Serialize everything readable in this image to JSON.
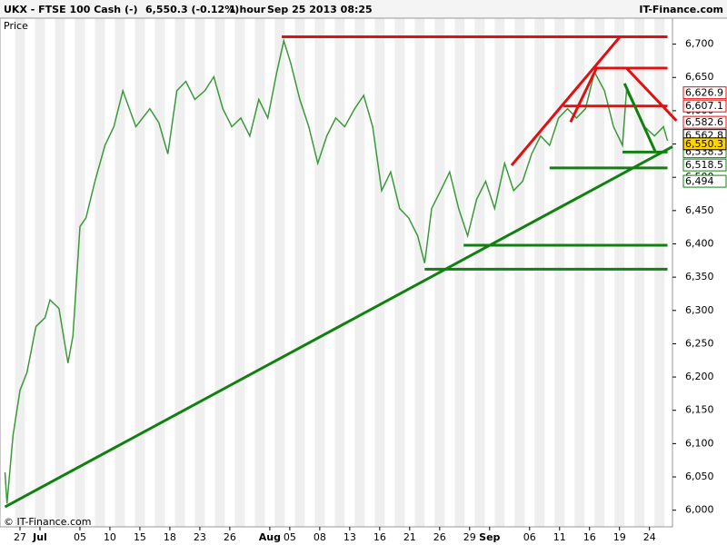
{
  "header": {
    "instrument": "UKX - FTSE 100 Cash (-)",
    "quote": "6,550.3 (-0.12%)",
    "interval": "1 hour",
    "timestamp": "Sep 25 2013 08:25",
    "brand": "IT-Finance.com"
  },
  "footer": {
    "copyright": "© IT-Finance.com"
  },
  "chart_data": {
    "type": "line",
    "y_label": "Price",
    "x": [
      -1.5,
      -1.3,
      -0.7,
      0,
      0.7,
      1.6,
      2.5,
      3,
      3.9,
      4.8,
      5.3,
      6,
      6.6,
      7.5,
      8.5,
      9.4,
      10.3,
      11.6,
      13,
      13.9,
      14.8,
      15.7,
      16.6,
      17.5,
      18.5,
      19.4,
      20.3,
      21.2,
      22.1,
      23,
      23.9,
      24.8,
      25.7,
      26.4,
      27.1,
      28,
      28.9,
      29.8,
      30.7,
      31.6,
      32.5,
      33.5,
      34.4,
      35.3,
      36.2,
      37.1,
      38,
      38.9,
      39.8,
      40.5,
      41.2,
      42.1,
      43,
      43.9,
      44.8,
      45.7,
      46.6,
      47.5,
      48.5,
      49.4,
      50.3,
      51.2,
      52.1,
      53,
      53.9,
      54.8,
      55.7,
      56.6,
      57.5,
      58.5,
      59.4,
      60.3,
      60.7,
      61.6,
      62.5,
      63.5,
      64.4,
      64.8
    ],
    "series": [
      {
        "name": "Price",
        "color": "#3a9a3a",
        "values": [
          6057,
          6010,
          6112,
          6180,
          6207,
          6276,
          6289,
          6316,
          6303,
          6221,
          6262,
          6426,
          6439,
          6494,
          6548,
          6576,
          6630,
          6576,
          6603,
          6582,
          6535,
          6630,
          6644,
          6617,
          6630,
          6651,
          6603,
          6576,
          6589,
          6562,
          6617,
          6589,
          6658,
          6705,
          6671,
          6617,
          6576,
          6521,
          6562,
          6589,
          6576,
          6603,
          6623,
          6576,
          6480,
          6508,
          6453,
          6439,
          6412,
          6371,
          6453,
          6480,
          6508,
          6453,
          6412,
          6467,
          6494,
          6453,
          6521,
          6480,
          6494,
          6535,
          6562,
          6548,
          6589,
          6603,
          6589,
          6603,
          6658,
          6630,
          6576,
          6548,
          6630,
          6603,
          6576,
          6562,
          6576,
          6555
        ]
      }
    ],
    "xlim": [
      -2,
      65.3
    ],
    "ylim": [
      5975,
      6739
    ],
    "xticks": [
      {
        "value": 0,
        "label": "27"
      },
      {
        "value": 2,
        "label": "Jul"
      },
      {
        "value": 6,
        "label": "05"
      },
      {
        "value": 9,
        "label": "10"
      },
      {
        "value": 12,
        "label": "15"
      },
      {
        "value": 15,
        "label": "18"
      },
      {
        "value": 18,
        "label": "23"
      },
      {
        "value": 21,
        "label": "26"
      },
      {
        "value": 25,
        "label": "Aug"
      },
      {
        "value": 27,
        "label": "05"
      },
      {
        "value": 30,
        "label": "08"
      },
      {
        "value": 33,
        "label": "13"
      },
      {
        "value": 36,
        "label": "16"
      },
      {
        "value": 39,
        "label": "21"
      },
      {
        "value": 42,
        "label": "26"
      },
      {
        "value": 45,
        "label": "29"
      },
      {
        "value": 47,
        "label": "Sep"
      },
      {
        "value": 51,
        "label": "06"
      },
      {
        "value": 54,
        "label": "11"
      },
      {
        "value": 57,
        "label": "16"
      },
      {
        "value": 60,
        "label": "19"
      },
      {
        "value": 63,
        "label": "24"
      }
    ],
    "yticks": [
      {
        "value": 6000,
        "label": "6,000"
      },
      {
        "value": 6050,
        "label": "6,050"
      },
      {
        "value": 6100,
        "label": "6,100"
      },
      {
        "value": 6150,
        "label": "6,150"
      },
      {
        "value": 6200,
        "label": "6,200"
      },
      {
        "value": 6250,
        "label": "6,250"
      },
      {
        "value": 6300,
        "label": "6,300"
      },
      {
        "value": 6350,
        "label": "6,350"
      },
      {
        "value": 6400,
        "label": "6,400"
      },
      {
        "value": 6450,
        "label": "6,450"
      },
      {
        "value": 6500,
        "label": "6,500"
      },
      {
        "value": 6550,
        "label": "6,550"
      },
      {
        "value": 6600,
        "label": "6,600"
      },
      {
        "value": 6650,
        "label": "6,650"
      },
      {
        "value": 6700,
        "label": "6,700"
      }
    ],
    "trend_lines": [
      {
        "color": "#e01010",
        "x": [
          26.2,
          64.8
        ],
        "y": [
          6711,
          6711
        ]
      },
      {
        "color": "#e01010",
        "x": [
          49.2,
          60.1
        ],
        "y": [
          6518,
          6712
        ]
      },
      {
        "color": "#e01010",
        "x": [
          57.5,
          64.8
        ],
        "y": [
          6664,
          6664
        ]
      },
      {
        "color": "#e01010",
        "x": [
          55.1,
          57.7
        ],
        "y": [
          6583,
          6664
        ]
      },
      {
        "color": "#e01010",
        "x": [
          54.4,
          64.8
        ],
        "y": [
          6607,
          6607
        ]
      },
      {
        "color": "#e01010",
        "x": [
          60.7,
          65.7
        ],
        "y": [
          6664,
          6585
        ]
      },
      {
        "color": "#108010",
        "x": [
          -1.5,
          65.3
        ],
        "y": [
          6005,
          6546
        ]
      },
      {
        "color": "#108010",
        "x": [
          40.5,
          64.8
        ],
        "y": [
          6362,
          6362
        ]
      },
      {
        "color": "#108010",
        "x": [
          44.4,
          64.8
        ],
        "y": [
          6398,
          6398
        ]
      },
      {
        "color": "#108010",
        "x": [
          53,
          64.8
        ],
        "y": [
          6514,
          6514
        ]
      },
      {
        "color": "#108010",
        "x": [
          60.3,
          64.8
        ],
        "y": [
          6538,
          6538
        ]
      },
      {
        "color": "#108010",
        "x": [
          60.5,
          63.6
        ],
        "y": [
          6641,
          6538
        ]
      }
    ],
    "price_labels": [
      {
        "value": 6626.9,
        "label": "6,626.9",
        "color": "#e01010"
      },
      {
        "value": 6607.1,
        "label": "6,607.1",
        "color": "#e01010"
      },
      {
        "value": 6582.6,
        "label": "6,582.6",
        "color": "#e01010"
      },
      {
        "value": 6562.8,
        "label": "6,562.8",
        "color": "#000000"
      },
      {
        "value": 6538.3,
        "label": "6,538.3",
        "color": "#108010"
      },
      {
        "value": 6518.5,
        "label": "6,518.5",
        "color": "#108010"
      },
      {
        "value": 6494,
        "label": "6,494",
        "color": "#108010"
      },
      {
        "value": 6550.3,
        "label": "6,550.3",
        "color": "#000000",
        "current": true
      }
    ]
  }
}
